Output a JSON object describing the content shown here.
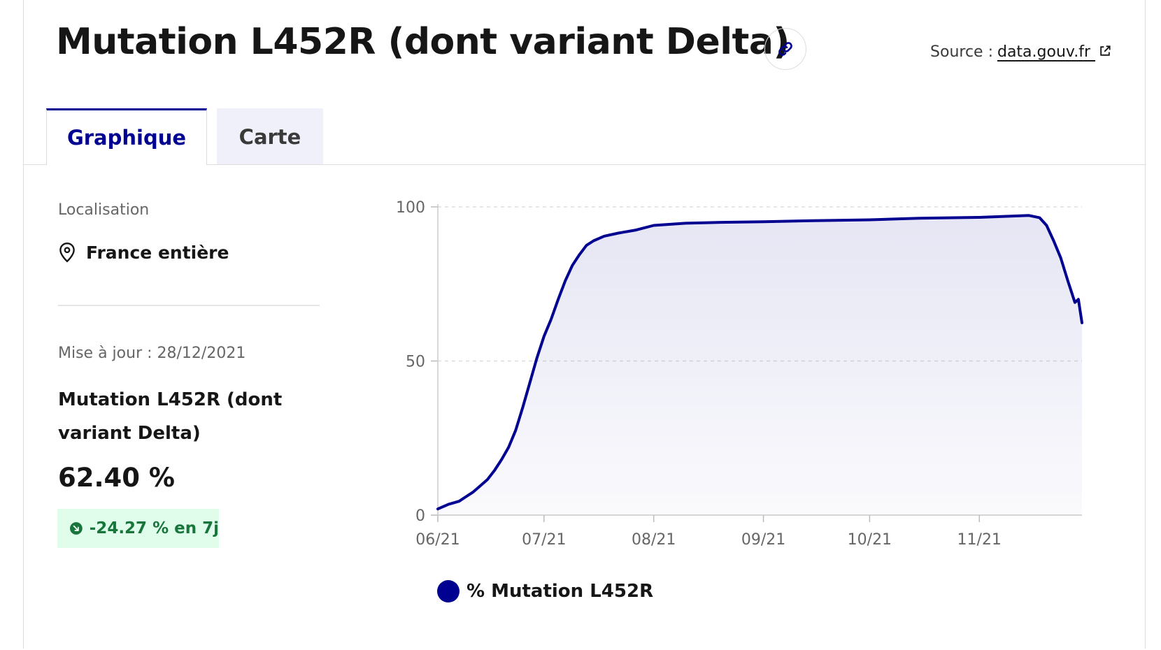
{
  "header": {
    "title": "Mutation L452R (dont variant Delta)",
    "source_label": "Source :",
    "source_link": "data.gouv.fr",
    "link_icon": "link-icon",
    "external_icon": "external-link-icon"
  },
  "tabs": [
    {
      "label": "Graphique",
      "active": true
    },
    {
      "label": "Carte",
      "active": false
    }
  ],
  "sidebar": {
    "location_label": "Localisation",
    "location_value": "France entière",
    "location_icon": "map-pin-icon",
    "updated": "Mise à jour : 28/12/2021",
    "indicator_name": "Mutation L452R (dont variant Delta)",
    "indicator_value": "62.40 %",
    "evolution": "-24.27 % en 7j",
    "evolution_icon": "arrow-down-right-icon"
  },
  "colors": {
    "accent": "#000091",
    "positive_bg": "#dffdea",
    "positive_text": "#18753c"
  },
  "chart_data": {
    "type": "area",
    "ylim": [
      0,
      100
    ],
    "yticks": [
      "0",
      "50",
      "100"
    ],
    "xticks": [
      {
        "date": "2021-06-01",
        "label": "06/21"
      },
      {
        "date": "2021-07-01",
        "label": "07/21"
      },
      {
        "date": "2021-08-01",
        "label": "08/21"
      },
      {
        "date": "2021-09-01",
        "label": "09/21"
      },
      {
        "date": "2021-10-01",
        "label": "10/21"
      },
      {
        "date": "2021-11-01",
        "label": "11/21"
      }
    ],
    "grid": true,
    "legend_position": "bottom",
    "series": [
      {
        "name": "% Mutation L452R",
        "color": "#000091",
        "points": [
          [
            "2021-06-01",
            2
          ],
          [
            "2021-06-04",
            3.5
          ],
          [
            "2021-06-07",
            4.5
          ],
          [
            "2021-06-09",
            6
          ],
          [
            "2021-06-11",
            7.5
          ],
          [
            "2021-06-13",
            9.5
          ],
          [
            "2021-06-15",
            11.5
          ],
          [
            "2021-06-17",
            14.5
          ],
          [
            "2021-06-19",
            18
          ],
          [
            "2021-06-21",
            22
          ],
          [
            "2021-06-23",
            27.5
          ],
          [
            "2021-06-25",
            35
          ],
          [
            "2021-06-27",
            43
          ],
          [
            "2021-06-29",
            51
          ],
          [
            "2021-07-01",
            58
          ],
          [
            "2021-07-03",
            63.5
          ],
          [
            "2021-07-05",
            70
          ],
          [
            "2021-07-07",
            76
          ],
          [
            "2021-07-09",
            81
          ],
          [
            "2021-07-11",
            84.5
          ],
          [
            "2021-07-13",
            87.5
          ],
          [
            "2021-07-15",
            89
          ],
          [
            "2021-07-18",
            90.5
          ],
          [
            "2021-07-22",
            91.5
          ],
          [
            "2021-07-27",
            92.5
          ],
          [
            "2021-08-01",
            94
          ],
          [
            "2021-08-10",
            94.7
          ],
          [
            "2021-08-20",
            95
          ],
          [
            "2021-09-01",
            95.2
          ],
          [
            "2021-09-15",
            95.5
          ],
          [
            "2021-10-01",
            95.8
          ],
          [
            "2021-10-15",
            96.3
          ],
          [
            "2021-11-01",
            96.6
          ],
          [
            "2021-11-10",
            97
          ],
          [
            "2021-11-15",
            97.2
          ],
          [
            "2021-11-18",
            96.5
          ],
          [
            "2021-11-20",
            94
          ],
          [
            "2021-11-22",
            89
          ],
          [
            "2021-11-24",
            83.5
          ],
          [
            "2021-11-26",
            76
          ],
          [
            "2021-11-28",
            69
          ],
          [
            "2021-11-29",
            70
          ],
          [
            "2021-11-30",
            62.4
          ]
        ]
      }
    ]
  }
}
